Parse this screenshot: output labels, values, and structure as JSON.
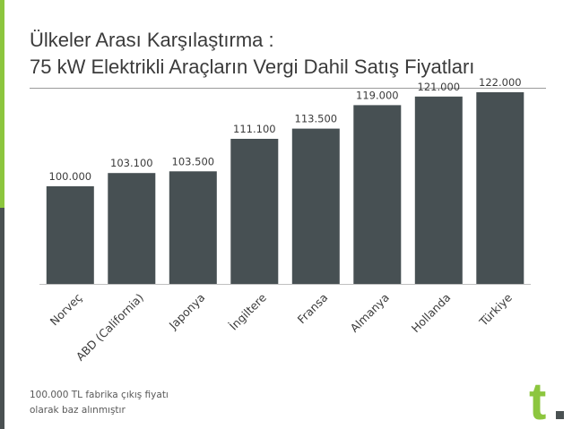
{
  "title": {
    "line1": "Ülkeler Arası Karşılaştırma :",
    "line2": "75 kW Elektrikli Araçların Vergi Dahil Satış Fiyatları"
  },
  "chart_data": {
    "type": "bar",
    "categories": [
      "Norveç",
      "ABD (California)",
      "Japonya",
      "İngiltere",
      "Fransa",
      "Almanya",
      "Hollanda",
      "Türkiye"
    ],
    "values": [
      100000,
      103100,
      103500,
      111100,
      113500,
      119000,
      121000,
      122000
    ],
    "value_labels": [
      "100.000",
      "103.100",
      "103.500",
      "111.100",
      "113.500",
      "119.000",
      "121.000",
      "122.000"
    ],
    "xlabel": "",
    "ylabel": "",
    "grid": false,
    "legend": "none",
    "colors": {
      "bar": "#475053",
      "axis": "#c0c0c0",
      "label": "#3b3b3b"
    }
  },
  "footnote": {
    "line1": "100.000 TL  fabrika çıkış fiyatı",
    "line2": "olarak baz alınmıştır"
  },
  "logo": {
    "letter": "t",
    "colors": {
      "letter": "#8cc63e",
      "dot": "#4a5152"
    }
  },
  "accent_colors": {
    "green": "#8cc63e",
    "dark": "#4a5152"
  }
}
